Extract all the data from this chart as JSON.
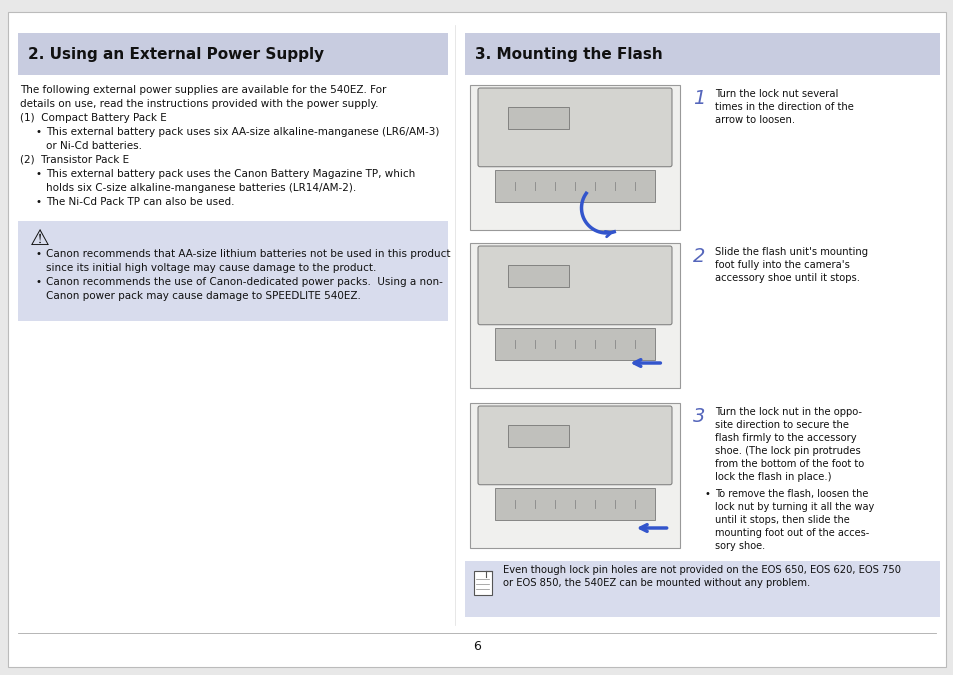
{
  "bg_color": "#e8e8e8",
  "page_bg": "#ffffff",
  "header_bg": "#c8cce0",
  "warning_bg": "#d8dced",
  "section1_title": "2. Using an External Power Supply",
  "section2_title": "3. Mounting the Flash",
  "page_number": "6",
  "body_intro": [
    "The following external power supplies are available for the 540EZ. For",
    "details on use, read the instructions provided with the power supply."
  ],
  "item1_header": "(1)  Compact Battery Pack E",
  "item1_bullets": [
    "This external battery pack uses six AA-size alkaline-manganese (LR6/AM-3)",
    "or Ni-Cd batteries."
  ],
  "item2_header": "(2)  Transistor Pack E",
  "item2_bullets": [
    "This external battery pack uses the Canon Battery Magazine TP, which",
    "holds six C-size alkaline-manganese batteries (LR14/AM-2).",
    "The Ni-Cd Pack TP can also be used."
  ],
  "warn_bullets": [
    [
      "Canon recommends that AA-size lithium batteries not be used in this product",
      "since its initial high voltage may cause damage to the product."
    ],
    [
      "Canon recommends the use of Canon-dedicated power packs.  Using a non-",
      "Canon power pack may cause damage to SPEEDLITE 540EZ."
    ]
  ],
  "steps": [
    {
      "num": "1",
      "lines": [
        "Turn the lock nut several",
        "times in the direction of the",
        "arrow to loosen."
      ]
    },
    {
      "num": "2",
      "lines": [
        "Slide the flash unit's mounting",
        "foot fully into the camera's",
        "accessory shoe until it stops."
      ]
    },
    {
      "num": "3",
      "lines": [
        "Turn the lock nut in the oppo-",
        "site direction to secure the",
        "flash firmly to the accessory",
        "shoe. (The lock pin protrudes",
        "from the bottom of the foot to",
        "lock the flash in place.)"
      ]
    }
  ],
  "step3_sub_bullet": [
    "To remove the flash, loosen the",
    "lock nut by turning it all the way",
    "until it stops, then slide the",
    "mounting foot out of the acces-",
    "sory shoe."
  ],
  "bottom_note": [
    "Even though lock pin holes are not provided on the EOS 650, EOS 620, EOS 750",
    "or EOS 850, the 540EZ can be mounted without any problem."
  ]
}
